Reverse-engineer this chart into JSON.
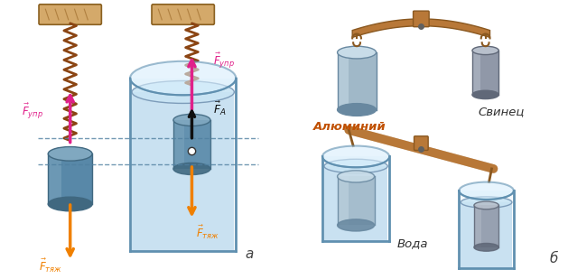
{
  "background_color": "#ffffff",
  "fig_width": 6.29,
  "fig_height": 3.09,
  "label_a": "а",
  "label_b": "б",
  "label_aluminum": "Алюминий",
  "label_lead": "Свинец",
  "label_water": "Вода",
  "wood_color": "#d4a96a",
  "wood_edge": "#8a6020",
  "spring_color": "#8b4513",
  "cyl_al_color": "#a0b8c8",
  "cyl_al_dark": "#6888a0",
  "cyl_al_light": "#c8dce8",
  "cyl_pb_color": "#9098a8",
  "cyl_pb_dark": "#606878",
  "cyl_pb_light": "#b8c0cc",
  "cyl_blue_color": "#5888a8",
  "cyl_blue_dark": "#406880",
  "cyl_blue_light": "#80a8c0",
  "water_color": "#b8d8ec",
  "water_edge": "#7090b0",
  "beaker_edge": "#6090b0",
  "beaker_fill": "#d8eef8",
  "balance_color": "#b87838",
  "balance_dark": "#8a5820",
  "arrow_pink": "#e0208a",
  "arrow_orange": "#f08000",
  "arrow_black": "#101010",
  "label_color_al": "#c05000",
  "label_color_pb": "#303030",
  "label_color_water": "#303030"
}
